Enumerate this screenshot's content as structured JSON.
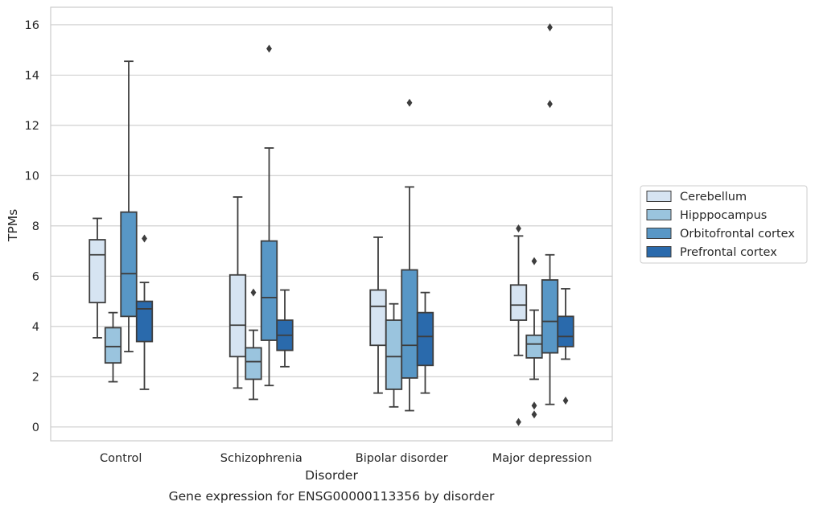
{
  "chart_data": {
    "type": "box",
    "title": "",
    "caption": "Gene expression for ENSG00000113356 by disorder",
    "xlabel": "Disorder",
    "ylabel": "TPMs",
    "ylim": [
      -0.55,
      16.7
    ],
    "yticks": [
      0,
      2,
      4,
      6,
      8,
      10,
      12,
      14,
      16
    ],
    "grid": "horizontal",
    "legend_position": "right",
    "categories": [
      "Control",
      "Schizophrenia",
      "Bipolar disorder",
      "Major depression"
    ],
    "series": [
      {
        "name": "Cerebellum",
        "color": "#d6e4f2",
        "boxes": [
          {
            "whisker_low": 3.55,
            "q1": 4.95,
            "median": 6.85,
            "q3": 7.45,
            "whisker_high": 8.3,
            "outliers": []
          },
          {
            "whisker_low": 1.55,
            "q1": 2.8,
            "median": 4.05,
            "q3": 6.05,
            "whisker_high": 9.15,
            "outliers": []
          },
          {
            "whisker_low": 1.35,
            "q1": 3.25,
            "median": 4.8,
            "q3": 5.45,
            "whisker_high": 7.55,
            "outliers": []
          },
          {
            "whisker_low": 2.85,
            "q1": 4.25,
            "median": 4.85,
            "q3": 5.65,
            "whisker_high": 7.6,
            "outliers": [
              7.9,
              0.2
            ]
          }
        ]
      },
      {
        "name": "Hipppocampus",
        "color": "#9ac4de",
        "boxes": [
          {
            "whisker_low": 1.8,
            "q1": 2.55,
            "median": 3.2,
            "q3": 3.95,
            "whisker_high": 4.55,
            "outliers": []
          },
          {
            "whisker_low": 1.1,
            "q1": 1.9,
            "median": 2.6,
            "q3": 3.15,
            "whisker_high": 3.85,
            "outliers": [
              5.35
            ]
          },
          {
            "whisker_low": 0.8,
            "q1": 1.5,
            "median": 2.8,
            "q3": 4.25,
            "whisker_high": 4.9,
            "outliers": []
          },
          {
            "whisker_low": 1.9,
            "q1": 2.75,
            "median": 3.3,
            "q3": 3.65,
            "whisker_high": 4.65,
            "outliers": [
              6.6,
              0.85,
              0.5
            ]
          }
        ]
      },
      {
        "name": "Orbitofrontal cortex",
        "color": "#5897c6",
        "boxes": [
          {
            "whisker_low": 3.0,
            "q1": 4.4,
            "median": 6.1,
            "q3": 8.55,
            "whisker_high": 14.55,
            "outliers": []
          },
          {
            "whisker_low": 1.65,
            "q1": 3.45,
            "median": 5.15,
            "q3": 7.4,
            "whisker_high": 11.1,
            "outliers": [
              15.05
            ]
          },
          {
            "whisker_low": 0.65,
            "q1": 1.95,
            "median": 3.25,
            "q3": 6.25,
            "whisker_high": 9.55,
            "outliers": [
              12.9
            ]
          },
          {
            "whisker_low": 0.9,
            "q1": 2.95,
            "median": 4.2,
            "q3": 5.85,
            "whisker_high": 6.85,
            "outliers": [
              15.9,
              12.85
            ]
          }
        ]
      },
      {
        "name": "Prefrontal cortex",
        "color": "#2a6aac",
        "boxes": [
          {
            "whisker_low": 1.5,
            "q1": 3.4,
            "median": 4.7,
            "q3": 5.0,
            "whisker_high": 5.75,
            "outliers": [
              7.5
            ]
          },
          {
            "whisker_low": 2.4,
            "q1": 3.05,
            "median": 3.65,
            "q3": 4.25,
            "whisker_high": 5.45,
            "outliers": []
          },
          {
            "whisker_low": 1.35,
            "q1": 2.45,
            "median": 3.6,
            "q3": 4.55,
            "whisker_high": 5.35,
            "outliers": []
          },
          {
            "whisker_low": 2.7,
            "q1": 3.2,
            "median": 3.6,
            "q3": 4.4,
            "whisker_high": 5.5,
            "outliers": [
              1.05
            ]
          }
        ]
      }
    ]
  }
}
